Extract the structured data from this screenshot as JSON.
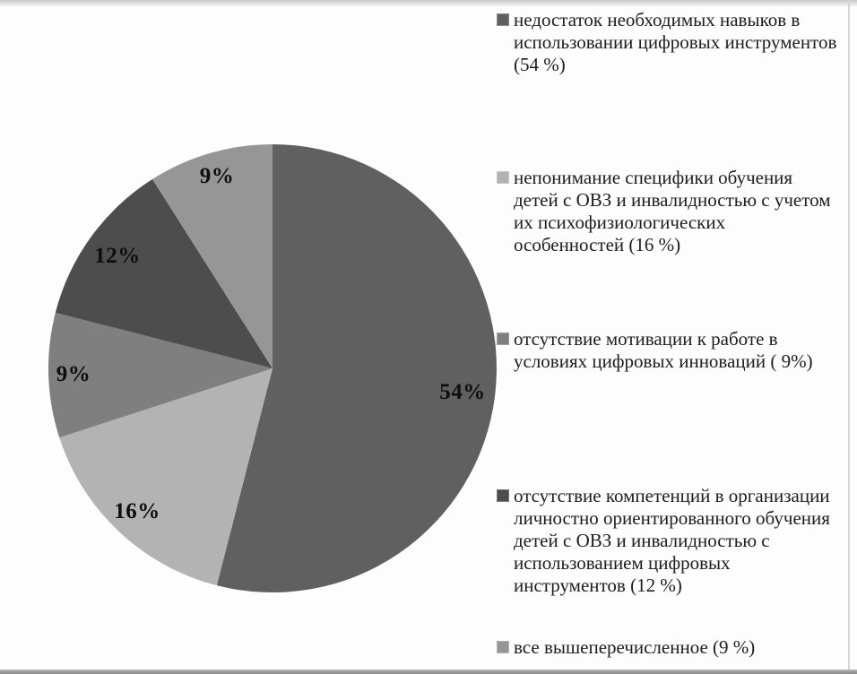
{
  "chart_data": {
    "type": "pie",
    "title": "",
    "direction": "clockwise",
    "start_angle_deg": 0,
    "legend_position": "right",
    "background": "#fdfdfd",
    "percent_label_color": "#0e0e0e",
    "slices": [
      {
        "name": "недостаток необходимых навыков в использовании цифровых инструментов (54 %)",
        "value": 54,
        "percent_label": "54%",
        "color": "#606060",
        "legend_lines": [
          "недостаток необходимых навыков в",
          "использовании цифровых инструментов",
          "(54 %)"
        ]
      },
      {
        "name": "непонимание специфики обучения детей с ОВЗ и инвалидностью с учетом их психофизиологических особенностей (16 %)",
        "value": 16,
        "percent_label": "16%",
        "color": "#b3b3b3",
        "legend_lines": [
          "непонимание специфики обучения",
          "детей с ОВЗ и инвалидностью с учетом",
          "их психофизиологических",
          "особенностей (16 %)"
        ]
      },
      {
        "name": "отсутствие мотивации к работе в условиях цифровых инноваций ( 9%)",
        "value": 9,
        "percent_label": "9%",
        "color": "#7f7f7f",
        "legend_lines": [
          "отсутствие мотивации к работе в",
          "условиях цифровых инноваций ( 9%)"
        ]
      },
      {
        "name": "отсутствие компетенций в организации личностно ориентированного обучения детей с ОВЗ и инвалидностью с использованием цифровых инструментов  (12 %)",
        "value": 12,
        "percent_label": "12%",
        "color": "#4d4d4d",
        "legend_lines": [
          "отсутствие компетенций в организации",
          "личностно ориентированного обучения",
          "детей с ОВЗ и инвалидностью с",
          "использованием цифровых",
          "инструментов  (12 %)"
        ]
      },
      {
        "name": "все вышеперечисленное (9 %)",
        "value": 9,
        "percent_label": "9%",
        "color": "#969696",
        "legend_lines": [
          "все вышеперечисленное (9 %)"
        ]
      }
    ]
  }
}
